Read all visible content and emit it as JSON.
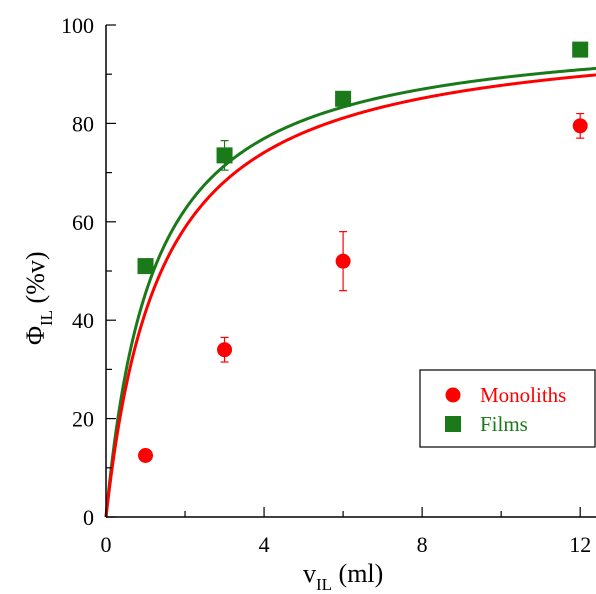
{
  "chart_data": {
    "type": "scatter",
    "xlim": [
      0,
      12.4
    ],
    "ylim": [
      0,
      100
    ],
    "x_ticks": [
      "0",
      "4",
      "8",
      "12"
    ],
    "y_ticks": [
      "0",
      "20",
      "40",
      "60",
      "80",
      "100"
    ],
    "xlabel": {
      "main": "v",
      "sub": "IL",
      "unit": " (ml)"
    },
    "ylabel": {
      "main": "Φ",
      "sub": "IL",
      "unit": " (%v)"
    },
    "grid": false,
    "legend_position": "right-bottom",
    "series": [
      {
        "name": "Monoliths",
        "color": "#ff0000",
        "marker": "circle",
        "x": [
          1,
          3,
          6,
          12
        ],
        "y": [
          12.5,
          34,
          52,
          79.5
        ],
        "yerr": [
          0.5,
          2.5,
          6,
          2.5
        ],
        "fit_k": 1.4
      },
      {
        "name": "Films",
        "color": "#1a7a1a",
        "marker": "square",
        "x": [
          1,
          3,
          6,
          12
        ],
        "y": [
          51,
          73.5,
          85,
          95
        ],
        "yerr": [
          0.5,
          3,
          1,
          0.5
        ],
        "fit_k": 1.2
      }
    ]
  }
}
